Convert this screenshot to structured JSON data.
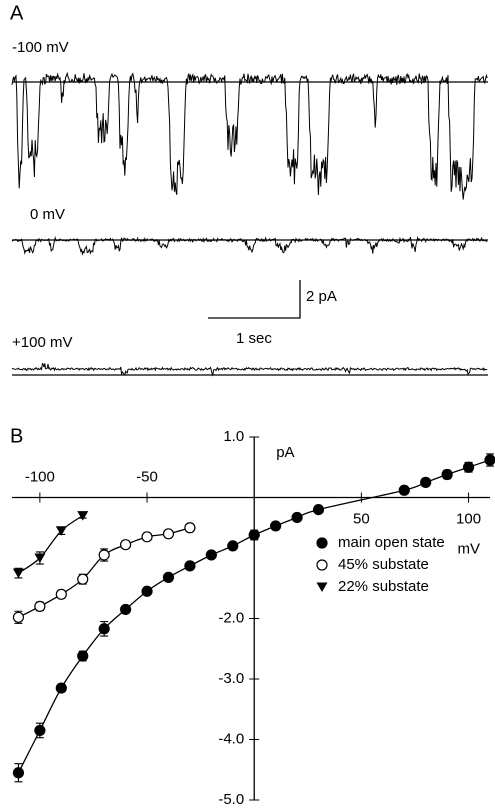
{
  "panel_a": {
    "label": "A",
    "traces": [
      {
        "label": "-100 mV"
      },
      {
        "label": "0 mV"
      },
      {
        "label": "+100 mV"
      }
    ],
    "scale_bar": {
      "y_label": "2 pA",
      "x_label": "1 sec"
    }
  },
  "chart_data": {
    "type": "scatter",
    "panel_label": "B",
    "x_label": "mV",
    "y_label": "pA",
    "xlim": [
      -113,
      110
    ],
    "xticks": [
      -100,
      -50,
      50,
      100
    ],
    "ylim": [
      -5.0,
      1.0
    ],
    "yticks": [
      {
        "value": 1,
        "label": "1.0"
      },
      {
        "value": -2,
        "label": "-2.0"
      },
      {
        "value": -3,
        "label": "-3.0"
      },
      {
        "value": -4,
        "label": "-4.0"
      },
      {
        "value": -5,
        "label": "-5.0"
      }
    ],
    "series": [
      {
        "name": "main open state",
        "marker": "circle",
        "color": "#000000",
        "x": [
          -110,
          -100,
          -90,
          -80,
          -70,
          -60,
          -50,
          -40,
          -30,
          -20,
          -10,
          0,
          10,
          20,
          30,
          70,
          80,
          90,
          100,
          110
        ],
        "values": [
          -4.55,
          -3.85,
          -3.15,
          -2.62,
          -2.17,
          -1.85,
          -1.55,
          -1.32,
          -1.13,
          -0.95,
          -0.8,
          -0.62,
          -0.47,
          -0.33,
          -0.2,
          0.12,
          0.25,
          0.38,
          0.5,
          0.62
        ],
        "errors": [
          0.15,
          0.12,
          0.06,
          0.08,
          0.12,
          0.06,
          0.05,
          0.05,
          0.04,
          0.04,
          0.04,
          0.08,
          0.05,
          0.05,
          0.04,
          0.05,
          0.06,
          0.07,
          0.08,
          0.1
        ]
      },
      {
        "name": "45% substate",
        "marker": "circle-open",
        "color": "#000000",
        "x": [
          -110,
          -100,
          -90,
          -80,
          -70,
          -60,
          -50,
          -40,
          -30
        ],
        "values": [
          -1.98,
          -1.8,
          -1.6,
          -1.35,
          -0.95,
          -0.78,
          -0.65,
          -0.6,
          -0.5
        ],
        "errors": [
          0.1,
          0.07,
          0.06,
          0.08,
          0.1,
          0.06,
          0.06,
          0.05,
          0.06
        ]
      },
      {
        "name": "22% substate",
        "marker": "triangle-down",
        "color": "#000000",
        "x": [
          -110,
          -100,
          -90,
          -80
        ],
        "values": [
          -1.25,
          -1.0,
          -0.55,
          -0.3
        ],
        "errors": [
          0.08,
          0.1,
          0.06,
          0.04
        ]
      }
    ]
  }
}
